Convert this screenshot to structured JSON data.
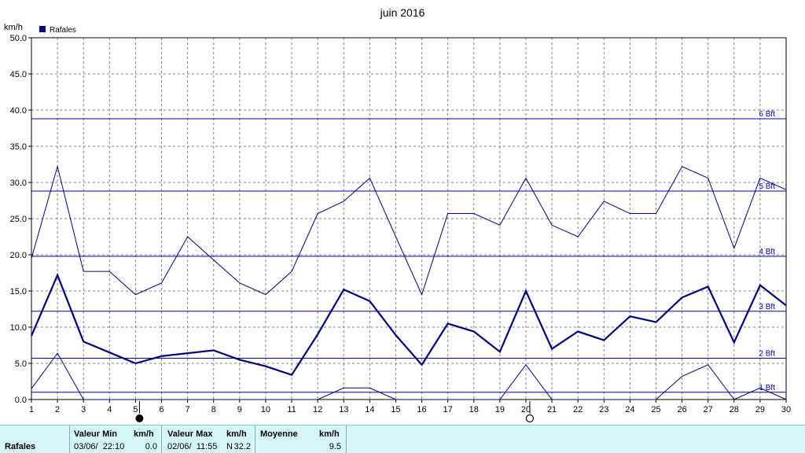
{
  "chart_data": {
    "type": "line",
    "title": "juin 2016",
    "ylabel": "km/h",
    "legend": "Rafales",
    "legend_placement": "top-left",
    "ylim": [
      0,
      50
    ],
    "yticks": [
      "0.0",
      "5.0",
      "10.0",
      "15.0",
      "20.0",
      "25.0",
      "30.0",
      "35.0",
      "40.0",
      "45.0",
      "50.0"
    ],
    "xlim": [
      1,
      30
    ],
    "x": [
      1,
      2,
      3,
      4,
      5,
      6,
      7,
      8,
      9,
      10,
      11,
      12,
      13,
      14,
      15,
      16,
      17,
      18,
      19,
      20,
      21,
      22,
      23,
      24,
      25,
      26,
      27,
      28,
      29,
      30
    ],
    "grid": true,
    "series": [
      {
        "name": "max",
        "values": [
          19.5,
          32.2,
          17.7,
          17.7,
          14.5,
          16.1,
          22.5,
          19.3,
          16.1,
          14.5,
          17.7,
          25.7,
          27.4,
          30.6,
          22.5,
          14.5,
          25.7,
          25.7,
          24.1,
          30.6,
          24.1,
          22.5,
          27.4,
          25.7,
          25.7,
          32.2,
          30.6,
          20.9,
          30.6,
          29.0
        ]
      },
      {
        "name": "moyenne",
        "values": [
          8.8,
          17.2,
          8.0,
          6.5,
          5.0,
          6.0,
          6.4,
          6.8,
          5.5,
          4.6,
          3.4,
          9.0,
          15.2,
          13.6,
          8.9,
          4.8,
          10.5,
          9.4,
          6.6,
          15.0,
          7.0,
          9.4,
          8.2,
          11.5,
          10.7,
          14.1,
          15.6,
          7.9,
          15.8,
          13.0
        ]
      },
      {
        "name": "min",
        "values": [
          1.5,
          6.4,
          0.0,
          0.0,
          0.0,
          0.0,
          0.0,
          0.0,
          0.0,
          0.0,
          0.0,
          0.0,
          1.6,
          1.6,
          0.0,
          0.0,
          0.0,
          0.0,
          0.0,
          4.8,
          0.0,
          0.0,
          0.0,
          0.0,
          0.0,
          3.2,
          4.8,
          0.0,
          1.6,
          0.0
        ]
      }
    ],
    "reference_lines": [
      {
        "label": "1 Bft",
        "value": 1.0
      },
      {
        "label": "2 Bft",
        "value": 5.7
      },
      {
        "label": "3 Bft",
        "value": 12.2
      },
      {
        "label": "4 Bft",
        "value": 19.8
      },
      {
        "label": "5 Bft",
        "value": 28.8
      },
      {
        "label": "6 Bft",
        "value": 38.8
      }
    ],
    "moon_markers": [
      {
        "day": 5,
        "phase": "new"
      },
      {
        "day": 20,
        "phase": "full"
      }
    ]
  },
  "table": {
    "row_label": "Rafales",
    "min_header": "Valeur Min",
    "min_unit": "km/h",
    "min_date": "03/06/  22:10",
    "min_value": "0.0",
    "max_header": "Valeur Max",
    "max_unit": "km/h",
    "max_date": "02/06/  11:55",
    "max_dir": "N",
    "max_value": "32.2",
    "avg_header": "Moyenne",
    "avg_unit": "km/h",
    "avg_value": "9.5"
  },
  "colors": {
    "series": "#000080",
    "reference": "#0000aa",
    "grid": "#808080",
    "footer_bg": "#d6f7f7"
  }
}
